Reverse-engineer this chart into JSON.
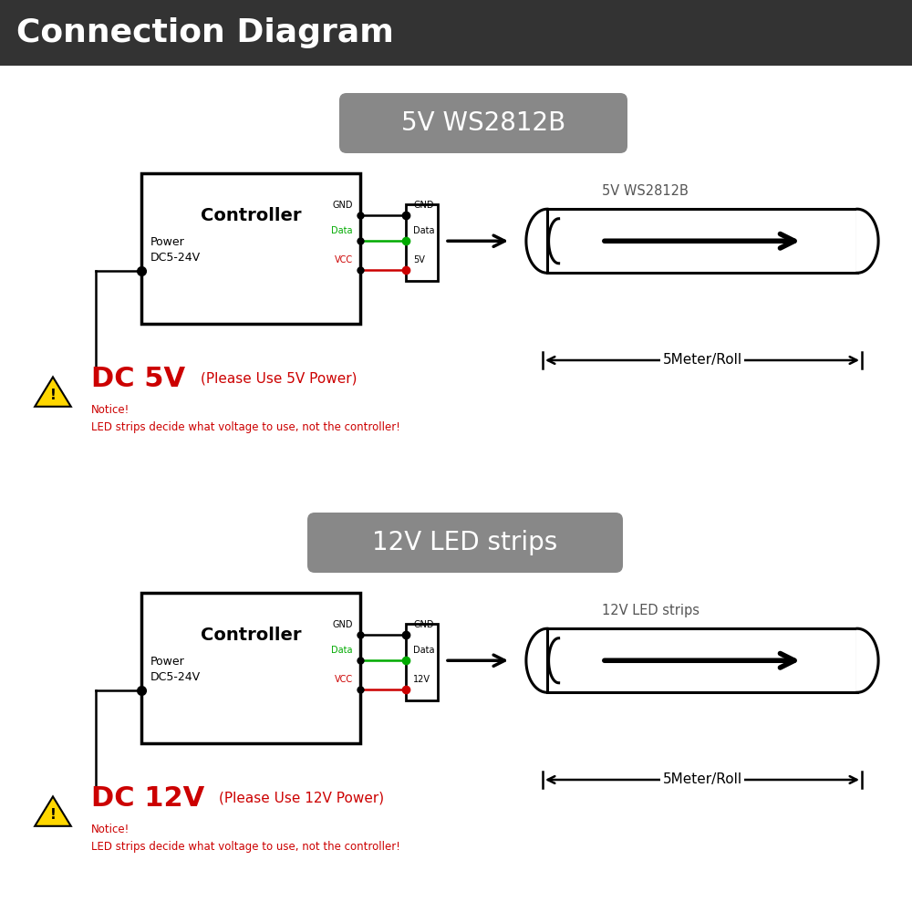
{
  "title": "Connection Diagram",
  "title_bg": "#333333",
  "title_color": "#ffffff",
  "title_fontsize": 26,
  "bg_color": "#ffffff",
  "section1_label": "5V WS2812B",
  "section2_label": "12V LED strips",
  "badge_color": "#888888",
  "badge_text_color": "#ffffff",
  "badge_fontsize": 20,
  "controller_label": "Controller",
  "power_label": "Power\nDC5-24V",
  "strip1_label": "5V WS2812B",
  "strip2_label": "12V LED strips",
  "meter_label": "5Meter/Roll",
  "gnd_color": "#000000",
  "data_color": "#00aa00",
  "vcc_color": "#cc0000",
  "warn_color": "#cc0000",
  "warn1_big": "DC 5V",
  "warn1_small": "(Please Use 5V Power)",
  "warn2_big": "DC 12V",
  "warn2_small": "(Please Use 12V Power)",
  "notice_text": "Notice!\nLED strips decide what voltage to use, not the controller!",
  "pin1_labels": [
    "GND",
    "Data",
    "VCC"
  ],
  "pin1_connector": [
    "GND",
    "Data",
    "5V"
  ],
  "pin2_labels": [
    "GND",
    "Data",
    "VCC"
  ],
  "pin2_connector": [
    "GND",
    "Data",
    "12V"
  ]
}
